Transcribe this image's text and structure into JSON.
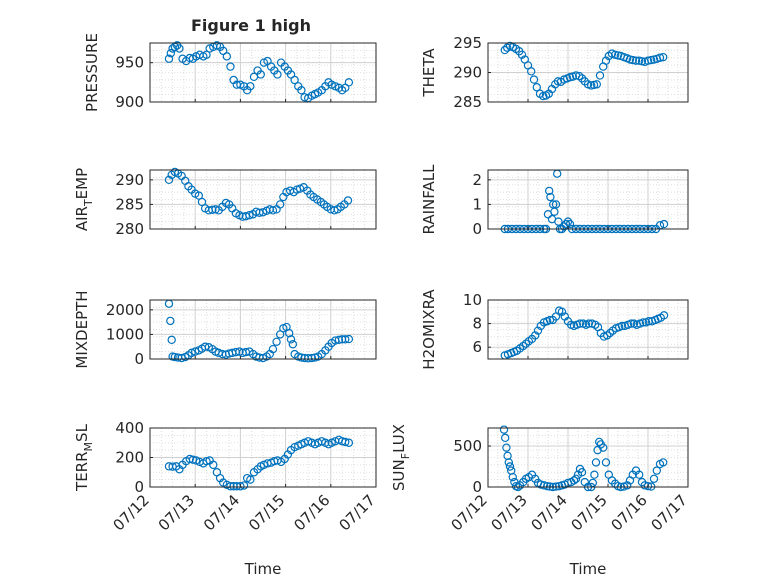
{
  "figure": {
    "title": "Figure 1 high"
  },
  "chart_data": [
    {
      "type": "scatter",
      "ylabel_parts": [
        "PRESSURE"
      ],
      "xlabel": "",
      "ylim": [
        900,
        975
      ],
      "yticks": [
        900,
        950
      ],
      "ytick_labels": [
        "900",
        "950"
      ],
      "xlim": [
        0,
        5
      ],
      "xtick_labels": [],
      "grid": true,
      "marker": "o",
      "color": "#0072bd",
      "x": [
        0.42,
        0.46,
        0.5,
        0.55,
        0.6,
        0.65,
        0.72,
        0.8,
        0.88,
        0.95,
        1.02,
        1.1,
        1.18,
        1.25,
        1.32,
        1.4,
        1.48,
        1.55,
        1.62,
        1.7,
        1.78,
        1.85,
        1.92,
        2.0,
        2.08,
        2.15,
        2.22,
        2.3,
        2.38,
        2.45,
        2.52,
        2.6,
        2.68,
        2.75,
        2.82,
        2.9,
        2.98,
        3.05,
        3.12,
        3.2,
        3.28,
        3.35,
        3.42,
        3.5,
        3.58,
        3.65,
        3.72,
        3.8,
        3.88,
        3.95,
        4.02,
        4.1,
        4.18,
        4.25,
        4.32,
        4.4
      ],
      "y": [
        955,
        962,
        968,
        970,
        972,
        968,
        955,
        952,
        956,
        955,
        958,
        960,
        958,
        960,
        968,
        970,
        972,
        970,
        965,
        958,
        945,
        928,
        922,
        922,
        920,
        915,
        920,
        932,
        940,
        935,
        950,
        952,
        945,
        940,
        935,
        950,
        945,
        940,
        935,
        928,
        920,
        915,
        906,
        905,
        908,
        910,
        912,
        915,
        920,
        925,
        922,
        920,
        918,
        915,
        918,
        925
      ]
    },
    {
      "type": "scatter",
      "ylabel_parts": [
        "THETA"
      ],
      "xlabel": "",
      "ylim": [
        285,
        295
      ],
      "yticks": [
        285,
        290,
        295
      ],
      "ytick_labels": [
        "285",
        "290",
        "295"
      ],
      "xlim": [
        0,
        5
      ],
      "xtick_labels": [],
      "grid": true,
      "marker": "o",
      "color": "#0072bd",
      "x": [
        0.42,
        0.48,
        0.55,
        0.62,
        0.7,
        0.78,
        0.85,
        0.92,
        1.0,
        1.08,
        1.15,
        1.22,
        1.3,
        1.38,
        1.45,
        1.52,
        1.6,
        1.68,
        1.75,
        1.82,
        1.9,
        1.98,
        2.05,
        2.12,
        2.2,
        2.28,
        2.35,
        2.42,
        2.5,
        2.58,
        2.65,
        2.72,
        2.8,
        2.88,
        2.95,
        3.02,
        3.1,
        3.18,
        3.25,
        3.32,
        3.4,
        3.48,
        3.55,
        3.62,
        3.7,
        3.78,
        3.85,
        3.92,
        4.0,
        4.08,
        4.15,
        4.22,
        4.3,
        4.38
      ],
      "y": [
        293.8,
        294.2,
        294.5,
        294.3,
        294.0,
        293.6,
        293.0,
        292.2,
        291.2,
        290.2,
        288.8,
        287.5,
        286.4,
        286.0,
        286.1,
        286.4,
        287.2,
        288.0,
        288.5,
        288.4,
        288.8,
        289.0,
        289.2,
        289.3,
        289.5,
        289.4,
        289.0,
        288.5,
        288.0,
        287.8,
        287.9,
        288.0,
        289.5,
        291.0,
        292.0,
        292.8,
        293.2,
        293.0,
        292.9,
        292.8,
        292.6,
        292.4,
        292.2,
        292.1,
        292.0,
        292.0,
        291.9,
        291.8,
        292.0,
        292.1,
        292.2,
        292.3,
        292.5,
        292.6
      ]
    },
    {
      "type": "scatter",
      "ylabel_parts": [
        "AIR",
        "T",
        "EMP"
      ],
      "xlabel": "",
      "ylim": [
        280,
        292
      ],
      "yticks": [
        280,
        285,
        290
      ],
      "ytick_labels": [
        "280",
        "285",
        "290"
      ],
      "xlim": [
        0,
        5
      ],
      "xtick_labels": [],
      "grid": true,
      "marker": "o",
      "color": "#0072bd",
      "x": [
        0.42,
        0.48,
        0.55,
        0.62,
        0.7,
        0.78,
        0.85,
        0.92,
        1.0,
        1.08,
        1.15,
        1.22,
        1.3,
        1.38,
        1.45,
        1.52,
        1.6,
        1.68,
        1.75,
        1.82,
        1.9,
        1.98,
        2.05,
        2.12,
        2.2,
        2.28,
        2.35,
        2.42,
        2.5,
        2.58,
        2.65,
        2.72,
        2.8,
        2.88,
        2.95,
        3.02,
        3.1,
        3.18,
        3.25,
        3.32,
        3.4,
        3.48,
        3.55,
        3.62,
        3.7,
        3.78,
        3.85,
        3.92,
        4.0,
        4.08,
        4.15,
        4.22,
        4.3,
        4.38
      ],
      "y": [
        290.0,
        291.0,
        291.6,
        291.3,
        290.8,
        289.8,
        288.7,
        288.0,
        287.2,
        286.8,
        285.5,
        284.2,
        283.8,
        283.9,
        284.0,
        283.8,
        284.5,
        285.3,
        285.0,
        284.2,
        283.2,
        282.8,
        282.5,
        282.6,
        282.8,
        283.0,
        283.5,
        283.3,
        283.4,
        283.7,
        284.0,
        283.8,
        284.0,
        285.0,
        286.5,
        287.5,
        287.8,
        287.5,
        288.0,
        288.2,
        288.5,
        287.8,
        287.0,
        286.5,
        286.0,
        285.5,
        285.0,
        284.5,
        284.0,
        283.8,
        284.0,
        284.5,
        285.0,
        285.8
      ]
    },
    {
      "type": "scatter",
      "ylabel_parts": [
        "RAINFALL"
      ],
      "xlabel": "",
      "ylim": [
        0,
        2.4
      ],
      "yticks": [
        0,
        1,
        2
      ],
      "ytick_labels": [
        "0",
        "1",
        "2"
      ],
      "xlim": [
        0,
        5
      ],
      "xtick_labels": [],
      "grid": true,
      "marker": "o",
      "color": "#0072bd",
      "x": [
        0.42,
        0.5,
        0.6,
        0.7,
        0.8,
        0.9,
        1.0,
        1.1,
        1.2,
        1.3,
        1.4,
        1.45,
        1.5,
        1.53,
        1.56,
        1.6,
        1.63,
        1.66,
        1.7,
        1.73,
        1.76,
        1.8,
        1.85,
        1.9,
        1.95,
        2.0,
        2.05,
        2.1,
        2.2,
        2.3,
        2.4,
        2.5,
        2.6,
        2.7,
        2.8,
        2.9,
        3.0,
        3.1,
        3.2,
        3.3,
        3.4,
        3.5,
        3.6,
        3.7,
        3.8,
        3.9,
        4.0,
        4.1,
        4.2,
        4.3,
        4.4
      ],
      "y": [
        0,
        0,
        0,
        0,
        0,
        0,
        0,
        0,
        0,
        0,
        0,
        0,
        0.6,
        1.55,
        1.3,
        0.4,
        1.0,
        0.7,
        1.0,
        2.25,
        0.3,
        0,
        0,
        0.1,
        0.2,
        0.3,
        0.2,
        0,
        0,
        0,
        0,
        0,
        0,
        0,
        0,
        0,
        0,
        0,
        0,
        0,
        0,
        0,
        0,
        0,
        0,
        0,
        0,
        0,
        0,
        0.15,
        0.2
      ]
    },
    {
      "type": "scatter",
      "ylabel_parts": [
        "MIXDEPTH"
      ],
      "xlabel": "",
      "ylim": [
        0,
        2400
      ],
      "yticks": [
        0,
        1000,
        2000
      ],
      "ytick_labels": [
        "0",
        "1000",
        "2000"
      ],
      "xlim": [
        0,
        5
      ],
      "xtick_labels": [],
      "grid": true,
      "marker": "o",
      "color": "#0072bd",
      "x": [
        0.42,
        0.45,
        0.48,
        0.5,
        0.55,
        0.62,
        0.7,
        0.78,
        0.85,
        0.92,
        1.0,
        1.08,
        1.15,
        1.22,
        1.3,
        1.38,
        1.45,
        1.52,
        1.6,
        1.68,
        1.75,
        1.82,
        1.9,
        1.98,
        2.05,
        2.12,
        2.2,
        2.28,
        2.35,
        2.42,
        2.5,
        2.58,
        2.65,
        2.72,
        2.8,
        2.88,
        2.95,
        3.02,
        3.08,
        3.12,
        3.16,
        3.2,
        3.28,
        3.35,
        3.42,
        3.5,
        3.58,
        3.65,
        3.72,
        3.8,
        3.88,
        3.95,
        4.02,
        4.1,
        4.18,
        4.25,
        4.32,
        4.4
      ],
      "y": [
        2250,
        1550,
        780,
        100,
        80,
        60,
        40,
        80,
        150,
        250,
        300,
        350,
        420,
        500,
        480,
        400,
        300,
        250,
        200,
        180,
        220,
        250,
        280,
        300,
        250,
        280,
        300,
        200,
        100,
        60,
        40,
        100,
        200,
        400,
        700,
        1000,
        1250,
        1300,
        1050,
        800,
        600,
        200,
        100,
        60,
        40,
        30,
        40,
        60,
        100,
        200,
        350,
        500,
        650,
        750,
        780,
        800,
        800,
        810
      ]
    },
    {
      "type": "scatter",
      "ylabel_parts": [
        "H2OMIXRA"
      ],
      "xlabel": "",
      "ylim": [
        5,
        10
      ],
      "yticks": [
        6,
        8,
        10
      ],
      "ytick_labels": [
        "6",
        "8",
        "10"
      ],
      "xlim": [
        0,
        5
      ],
      "xtick_labels": [],
      "grid": true,
      "marker": "o",
      "color": "#0072bd",
      "x": [
        0.42,
        0.5,
        0.58,
        0.65,
        0.72,
        0.8,
        0.88,
        0.95,
        1.02,
        1.1,
        1.18,
        1.25,
        1.32,
        1.4,
        1.48,
        1.55,
        1.62,
        1.7,
        1.78,
        1.85,
        1.92,
        2.0,
        2.08,
        2.15,
        2.22,
        2.3,
        2.38,
        2.45,
        2.52,
        2.6,
        2.68,
        2.75,
        2.82,
        2.9,
        2.98,
        3.05,
        3.12,
        3.2,
        3.28,
        3.35,
        3.42,
        3.5,
        3.58,
        3.65,
        3.72,
        3.8,
        3.88,
        3.95,
        4.02,
        4.1,
        4.18,
        4.25,
        4.32,
        4.4
      ],
      "y": [
        5.3,
        5.4,
        5.5,
        5.6,
        5.7,
        5.9,
        6.1,
        6.3,
        6.5,
        6.7,
        7.0,
        7.4,
        7.8,
        8.1,
        8.2,
        8.3,
        8.3,
        8.6,
        9.1,
        9.0,
        8.6,
        8.2,
        7.9,
        7.8,
        7.9,
        8.0,
        8.0,
        7.9,
        8.0,
        8.0,
        7.9,
        7.7,
        7.2,
        6.9,
        7.0,
        7.2,
        7.4,
        7.6,
        7.7,
        7.8,
        7.8,
        7.9,
        8.0,
        8.0,
        7.9,
        8.0,
        8.1,
        8.1,
        8.2,
        8.2,
        8.3,
        8.4,
        8.5,
        8.7
      ]
    },
    {
      "type": "scatter",
      "ylabel_parts": [
        "TERR",
        "M",
        "SL"
      ],
      "xlabel": "Time",
      "ylim": [
        0,
        400
      ],
      "yticks": [
        0,
        200,
        400
      ],
      "ytick_labels": [
        "0",
        "200",
        "400"
      ],
      "xlim": [
        0,
        5
      ],
      "xtick_labels": [
        "07/12",
        "07/13",
        "07/14",
        "07/15",
        "07/16",
        "07/17"
      ],
      "grid": true,
      "marker": "o",
      "color": "#0072bd",
      "x": [
        0.42,
        0.5,
        0.58,
        0.65,
        0.72,
        0.8,
        0.88,
        0.95,
        1.02,
        1.1,
        1.18,
        1.25,
        1.32,
        1.4,
        1.48,
        1.55,
        1.62,
        1.7,
        1.78,
        1.85,
        1.92,
        2.0,
        2.08,
        2.15,
        2.22,
        2.3,
        2.38,
        2.45,
        2.52,
        2.6,
        2.68,
        2.75,
        2.82,
        2.9,
        2.98,
        3.05,
        3.12,
        3.2,
        3.28,
        3.35,
        3.42,
        3.5,
        3.58,
        3.65,
        3.72,
        3.8,
        3.88,
        3.95,
        4.02,
        4.1,
        4.18,
        4.25,
        4.32,
        4.4
      ],
      "y": [
        140,
        138,
        140,
        120,
        150,
        175,
        190,
        185,
        180,
        170,
        160,
        175,
        180,
        150,
        100,
        60,
        30,
        15,
        5,
        5,
        5,
        5,
        10,
        60,
        50,
        100,
        120,
        140,
        150,
        160,
        165,
        175,
        180,
        170,
        190,
        220,
        250,
        270,
        280,
        290,
        300,
        310,
        300,
        290,
        300,
        310,
        300,
        290,
        300,
        310,
        320,
        310,
        305,
        300
      ]
    },
    {
      "type": "scatter",
      "ylabel_parts": [
        "SUN",
        "F",
        "LUX"
      ],
      "xlabel": "Time",
      "ylim": [
        0,
        720
      ],
      "yticks": [
        0,
        500
      ],
      "ytick_labels": [
        "0",
        "500"
      ],
      "xlim": [
        0,
        5
      ],
      "xtick_labels": [
        "07/12",
        "07/13",
        "07/14",
        "07/15",
        "07/16",
        "07/17"
      ],
      "grid": true,
      "marker": "o",
      "color": "#0072bd",
      "x": [
        0.4,
        0.43,
        0.46,
        0.49,
        0.52,
        0.55,
        0.58,
        0.62,
        0.66,
        0.7,
        0.75,
        0.8,
        0.88,
        0.95,
        1.02,
        1.1,
        1.18,
        1.25,
        1.32,
        1.4,
        1.48,
        1.55,
        1.62,
        1.7,
        1.78,
        1.85,
        1.92,
        2.0,
        2.08,
        2.15,
        2.2,
        2.25,
        2.3,
        2.35,
        2.42,
        2.5,
        2.58,
        2.62,
        2.66,
        2.7,
        2.74,
        2.78,
        2.82,
        2.88,
        2.95,
        3.02,
        3.1,
        3.18,
        3.25,
        3.32,
        3.4,
        3.48,
        3.55,
        3.62,
        3.7,
        3.78,
        3.85,
        3.92,
        4.0,
        4.08,
        4.15,
        4.22,
        4.3,
        4.38
      ],
      "y": [
        700,
        600,
        480,
        380,
        300,
        250,
        200,
        120,
        60,
        10,
        0,
        20,
        60,
        100,
        120,
        150,
        100,
        50,
        30,
        20,
        10,
        5,
        0,
        5,
        10,
        20,
        30,
        50,
        60,
        80,
        100,
        150,
        220,
        180,
        60,
        0,
        0,
        50,
        150,
        300,
        450,
        550,
        520,
        480,
        300,
        150,
        80,
        40,
        10,
        0,
        5,
        20,
        80,
        150,
        200,
        150,
        60,
        20,
        10,
        5,
        100,
        200,
        280,
        300
      ]
    }
  ]
}
